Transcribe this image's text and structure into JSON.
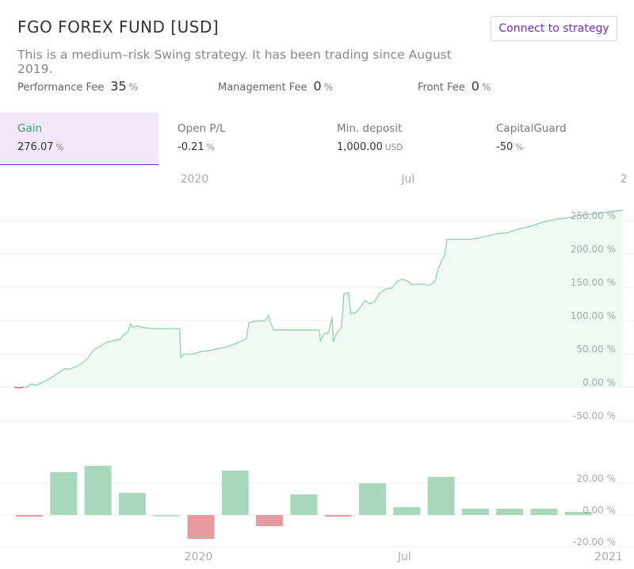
{
  "header": {
    "title": "FGO FOREX FUND [USD]",
    "subtitle": "This is a medium–risk Swing strategy. It has been trading since August 2019.",
    "connect_label": "Connect to strategy"
  },
  "fees": [
    {
      "label": "Performance Fee",
      "value": "35",
      "unit": "%"
    },
    {
      "label": "Management Fee",
      "value": "0",
      "unit": "%"
    },
    {
      "label": "Front Fee",
      "value": "0",
      "unit": "%"
    }
  ],
  "stats": [
    {
      "label": "Gain",
      "value": "276.07",
      "unit": "%",
      "active": true
    },
    {
      "label": "Open P/L",
      "value": "-0.21",
      "unit": "%",
      "active": false
    },
    {
      "label": "Min. deposit",
      "value": "1,000.00",
      "unit": "USD",
      "active": false
    },
    {
      "label": "CapitalGuard",
      "value": "-50",
      "unit": "%",
      "active": false
    }
  ],
  "colors": {
    "accent": "#7a29c7",
    "gain_line": "#8fd3ad",
    "gain_fill": "#f0f9f3",
    "bar_positive": "#a8d8bc",
    "bar_negative": "#e59a9e",
    "loss_line": "#e06a70",
    "grid": "#eeeeee",
    "muted_text": "#aaaaaa"
  },
  "chart_data": [
    {
      "type": "line",
      "top_axis_ticks": [
        {
          "date": "2020-01-01",
          "label": "2020"
        },
        {
          "date": "2020-07-01",
          "label": "Jul"
        },
        {
          "date": "2021-01-01",
          "label": "2"
        }
      ],
      "y_ticks": [
        {
          "value": -50,
          "label": "-50.00 %"
        },
        {
          "value": 0,
          "label": "0.00 %"
        },
        {
          "value": 50,
          "label": "50.00 %"
        },
        {
          "value": 100,
          "label": "100.00 %"
        },
        {
          "value": 150,
          "label": "150.00 %"
        },
        {
          "value": 200,
          "label": "200.00 %"
        },
        {
          "value": 250,
          "label": "250.00 %"
        }
      ],
      "ylim": [
        -50,
        270
      ],
      "xlim": [
        "2019-08-01",
        "2021-01-05"
      ],
      "grid": true,
      "series": [
        {
          "values": [
            [
              "2019-08-01",
              0
            ],
            [
              "2019-08-05",
              -1
            ],
            [
              "2019-08-09",
              0
            ],
            [
              "2019-08-12",
              0
            ],
            [
              "2019-08-15",
              5
            ],
            [
              "2019-08-20",
              3
            ],
            [
              "2019-08-23",
              6
            ],
            [
              "2019-08-28",
              10
            ],
            [
              "2019-09-02",
              15
            ],
            [
              "2019-09-06",
              20
            ],
            [
              "2019-09-10",
              24
            ],
            [
              "2019-09-13",
              28
            ],
            [
              "2019-09-17",
              27
            ],
            [
              "2019-09-21",
              30
            ],
            [
              "2019-09-25",
              33
            ],
            [
              "2019-09-29",
              38
            ],
            [
              "2019-10-03",
              44
            ],
            [
              "2019-10-06",
              52
            ],
            [
              "2019-10-09",
              58
            ],
            [
              "2019-10-12",
              60
            ],
            [
              "2019-10-16",
              65
            ],
            [
              "2019-10-20",
              68
            ],
            [
              "2019-10-25",
              70
            ],
            [
              "2019-10-30",
              72
            ],
            [
              "2019-11-03",
              80
            ],
            [
              "2019-11-06",
              83
            ],
            [
              "2019-11-08",
              95
            ],
            [
              "2019-11-10",
              90
            ],
            [
              "2019-11-14",
              92
            ],
            [
              "2019-11-20",
              89
            ],
            [
              "2019-11-28",
              88
            ],
            [
              "2019-12-08",
              88
            ],
            [
              "2019-12-18",
              88
            ],
            [
              "2019-12-20",
              88
            ],
            [
              "2019-12-21",
              45
            ],
            [
              "2019-12-24",
              50
            ],
            [
              "2020-01-01",
              50
            ],
            [
              "2020-01-08",
              54
            ],
            [
              "2020-01-15",
              55
            ],
            [
              "2020-01-22",
              58
            ],
            [
              "2020-01-28",
              60
            ],
            [
              "2020-02-05",
              65
            ],
            [
              "2020-02-12",
              70
            ],
            [
              "2020-02-15",
              73
            ],
            [
              "2020-02-17",
              97
            ],
            [
              "2020-02-22",
              99
            ],
            [
              "2020-03-02",
              100
            ],
            [
              "2020-03-05",
              108
            ],
            [
              "2020-03-07",
              95
            ],
            [
              "2020-03-09",
              86
            ],
            [
              "2020-03-20",
              86
            ],
            [
              "2020-04-01",
              86
            ],
            [
              "2020-04-12",
              86
            ],
            [
              "2020-04-17",
              86
            ],
            [
              "2020-04-18",
              70
            ],
            [
              "2020-04-21",
              80
            ],
            [
              "2020-04-25",
              82
            ],
            [
              "2020-04-28",
              105
            ],
            [
              "2020-04-29",
              68
            ],
            [
              "2020-05-02",
              82
            ],
            [
              "2020-05-06",
              90
            ],
            [
              "2020-05-08",
              140
            ],
            [
              "2020-05-12",
              142
            ],
            [
              "2020-05-14",
              110
            ],
            [
              "2020-05-18",
              112
            ],
            [
              "2020-05-22",
              120
            ],
            [
              "2020-05-26",
              130
            ],
            [
              "2020-05-30",
              125
            ],
            [
              "2020-06-03",
              128
            ],
            [
              "2020-06-07",
              140
            ],
            [
              "2020-06-12",
              147
            ],
            [
              "2020-06-18",
              149
            ],
            [
              "2020-06-22",
              158
            ],
            [
              "2020-06-26",
              162
            ],
            [
              "2020-07-01",
              160
            ],
            [
              "2020-07-05",
              154
            ],
            [
              "2020-07-12",
              155
            ],
            [
              "2020-07-20",
              153
            ],
            [
              "2020-07-25",
              160
            ],
            [
              "2020-07-27",
              175
            ],
            [
              "2020-07-30",
              188
            ],
            [
              "2020-08-02",
              198
            ],
            [
              "2020-08-04",
              222
            ],
            [
              "2020-08-15",
              222
            ],
            [
              "2020-08-25",
              222
            ],
            [
              "2020-09-05",
              226
            ],
            [
              "2020-09-15",
              230
            ],
            [
              "2020-09-25",
              232
            ],
            [
              "2020-10-05",
              238
            ],
            [
              "2020-10-15",
              242
            ],
            [
              "2020-10-25",
              248
            ],
            [
              "2020-11-05",
              252
            ],
            [
              "2020-11-15",
              254
            ],
            [
              "2020-11-25",
              258
            ],
            [
              "2020-12-05",
              260
            ],
            [
              "2020-12-15",
              262
            ],
            [
              "2020-12-25",
              264
            ],
            [
              "2021-01-01",
              266
            ]
          ]
        }
      ]
    },
    {
      "type": "bar",
      "categories": [
        "2019-08",
        "2019-09",
        "2019-10",
        "2019-11",
        "2019-12",
        "2020-01",
        "2020-02",
        "2020-03",
        "2020-04",
        "2020-05",
        "2020-06",
        "2020-07",
        "2020-08",
        "2020-09",
        "2020-10",
        "2020-11",
        "2020-12"
      ],
      "values": [
        -1,
        27,
        31,
        14,
        0,
        -15,
        28,
        -7,
        13,
        -1,
        20,
        5,
        24,
        4,
        4,
        4,
        2
      ],
      "x_ticks": [
        {
          "category": "2020-01",
          "label": "2020"
        },
        {
          "category": "2020-07",
          "label": "Jul"
        },
        {
          "category": "2021-01",
          "label": "2021"
        }
      ],
      "y_ticks": [
        {
          "value": -20,
          "label": "-20.00 %"
        },
        {
          "value": 0,
          "label": "0.00 %"
        },
        {
          "value": 20,
          "label": "20.00 %"
        }
      ],
      "ylim": [
        -20,
        40
      ],
      "grid": true
    }
  ]
}
